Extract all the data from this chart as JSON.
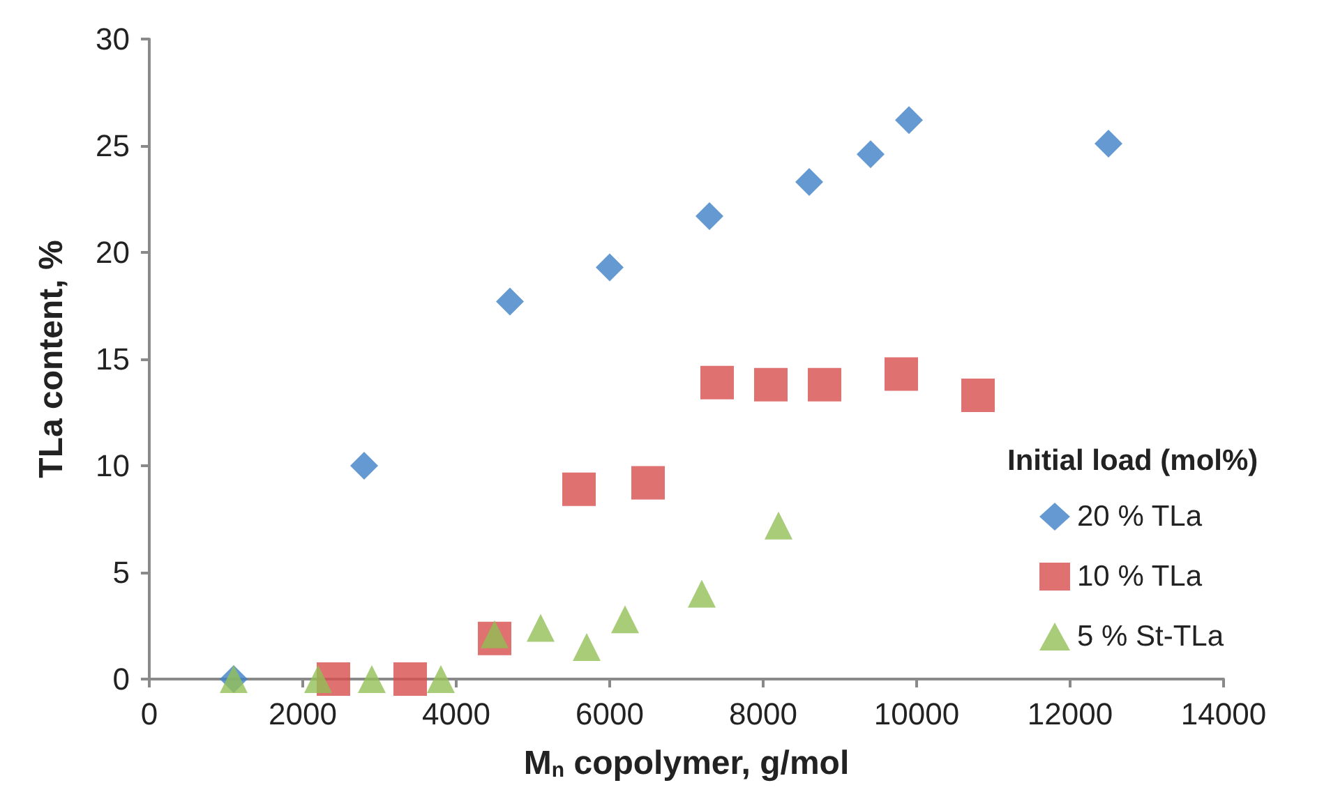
{
  "chart_data": {
    "type": "scatter",
    "xlabel": "M$_{n}$ copolymer, g/mol",
    "ylabel": "TLa content, %",
    "legend_title": "Initial load (mol%)",
    "legend": "right",
    "grid": false,
    "xlim": [
      0,
      14000
    ],
    "xticks": [
      0,
      2000,
      4000,
      6000,
      8000,
      10000,
      12000,
      14000
    ],
    "ylim": [
      0,
      30
    ],
    "yticks": [
      0,
      5,
      10,
      15,
      20,
      25,
      30
    ],
    "series": [
      {
        "name": "20 % TLa",
        "color": "#3d80c6",
        "marker": "diamond",
        "x": [
          1100,
          2800,
          4700,
          6000,
          7300,
          8600,
          9400,
          9900,
          12500
        ],
        "values": [
          0,
          10,
          17.7,
          19.3,
          21.7,
          23.3,
          24.6,
          26.2,
          25.1
        ]
      },
      {
        "name": "10 % TLa",
        "color": "#d84d4d",
        "marker": "square",
        "x": [
          2400,
          3400,
          4500,
          5600,
          6500,
          7400,
          8100,
          8800,
          9800,
          10800
        ],
        "values": [
          0,
          0,
          1.9,
          8.9,
          9.2,
          13.9,
          13.8,
          13.8,
          14.3,
          13.3
        ]
      },
      {
        "name": "5 % St-TLa",
        "color": "#92bf55",
        "marker": "triangle",
        "x": [
          1100,
          2200,
          2900,
          3800,
          4500,
          5100,
          5700,
          6200,
          7200,
          8200
        ],
        "values": [
          0,
          0,
          0,
          0,
          2.1,
          2.4,
          1.5,
          2.8,
          4.0,
          7.2
        ]
      }
    ]
  }
}
